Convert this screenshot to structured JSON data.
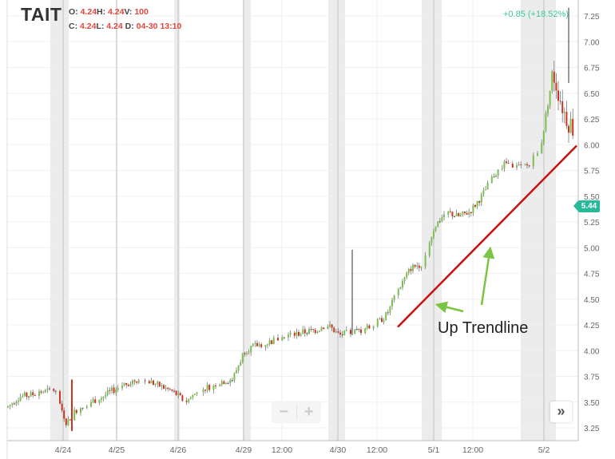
{
  "symbol": "TAIT",
  "ohlc": {
    "open_label": "O:",
    "open": "4.24",
    "high_label": "H:",
    "high": "4.24",
    "volume_label": "V:",
    "volume": "100",
    "close_label": "C:",
    "close": "4.24",
    "low_label": "L:",
    "low": "4.24",
    "date_label": "D:",
    "date": "04-30 13:10"
  },
  "change": "+0.85 (+18.52%)",
  "last_price": "5.44",
  "annotation": "Up Trendline",
  "controls": {
    "zoom_out": "−",
    "zoom_in": "+",
    "scroll_right": "»"
  },
  "colors": {
    "up": "#7cbf4f",
    "down": "#d0321f",
    "neutral": "#555555",
    "trendline": "#c81010",
    "arrow": "#7cc443",
    "badge": "#26b99a"
  },
  "chart_data": {
    "type": "candlestick",
    "y_ticks": [
      "7.25",
      "7.00",
      "6.75",
      "6.50",
      "6.25",
      "6.00",
      "5.75",
      "5.50",
      "5.25",
      "5.00",
      "4.75",
      "4.50",
      "4.25",
      "4.00",
      "3.75",
      "3.50",
      "3.25"
    ],
    "ylim": [
      3.13,
      7.35
    ],
    "x_ticks": [
      "4/24",
      "4/25",
      "4/26",
      "4/29",
      "12:00",
      "4/30",
      "12:00",
      "5/1",
      "12:00",
      "5/2"
    ],
    "approx_closes": [
      3.45,
      3.55,
      3.57,
      3.6,
      3.62,
      3.3,
      3.45,
      3.5,
      3.55,
      3.62,
      3.68,
      3.72,
      3.7,
      3.65,
      3.6,
      3.5,
      3.6,
      3.65,
      3.7,
      3.72,
      4.0,
      4.05,
      4.08,
      4.12,
      4.15,
      4.18,
      4.2,
      4.25,
      4.15,
      4.18,
      4.2,
      4.25,
      4.35,
      4.6,
      4.8,
      4.85,
      5.2,
      5.35,
      5.3,
      5.35,
      5.5,
      5.7,
      5.82,
      5.78,
      5.8,
      6.0,
      6.7,
      6.3,
      6.1
    ],
    "spikes": [
      {
        "near": "4/24",
        "low": 3.22
      },
      {
        "near": "4/30",
        "high": 4.98
      },
      {
        "near": "5/2",
        "high": 7.33
      }
    ],
    "trendline": {
      "start_price": 4.23,
      "end_price": 5.99
    }
  }
}
